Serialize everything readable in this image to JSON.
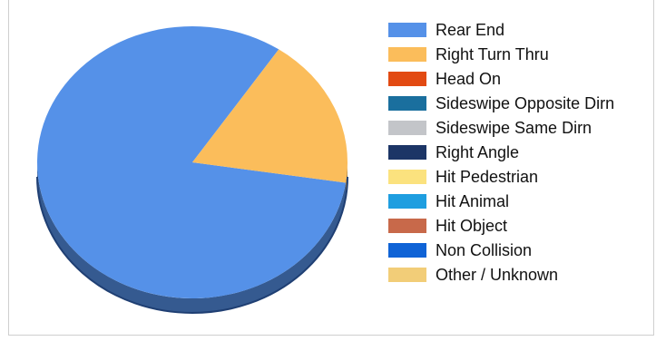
{
  "chart_data": {
    "type": "pie",
    "title": "",
    "categories": [
      "Rear End",
      "Right Turn Thru",
      "Head On",
      "Sideswipe Opposite Dirn",
      "Sideswipe Same Dirn",
      "Right Angle",
      "Hit Pedestrian",
      "Hit Animal",
      "Hit Object",
      "Non Collision",
      "Other / Unknown"
    ],
    "values": [
      82,
      18,
      0,
      0,
      0,
      0,
      0,
      0,
      0,
      0,
      0
    ],
    "colors": [
      "#5591e8",
      "#fbbd5b",
      "#e24a12",
      "#1a6f9e",
      "#c3c5c9",
      "#1c3566",
      "#fbe27e",
      "#1e9ee0",
      "#c8694a",
      "#0f63d6",
      "#f2cd78"
    ],
    "legend_position": "right",
    "style": "3d"
  }
}
